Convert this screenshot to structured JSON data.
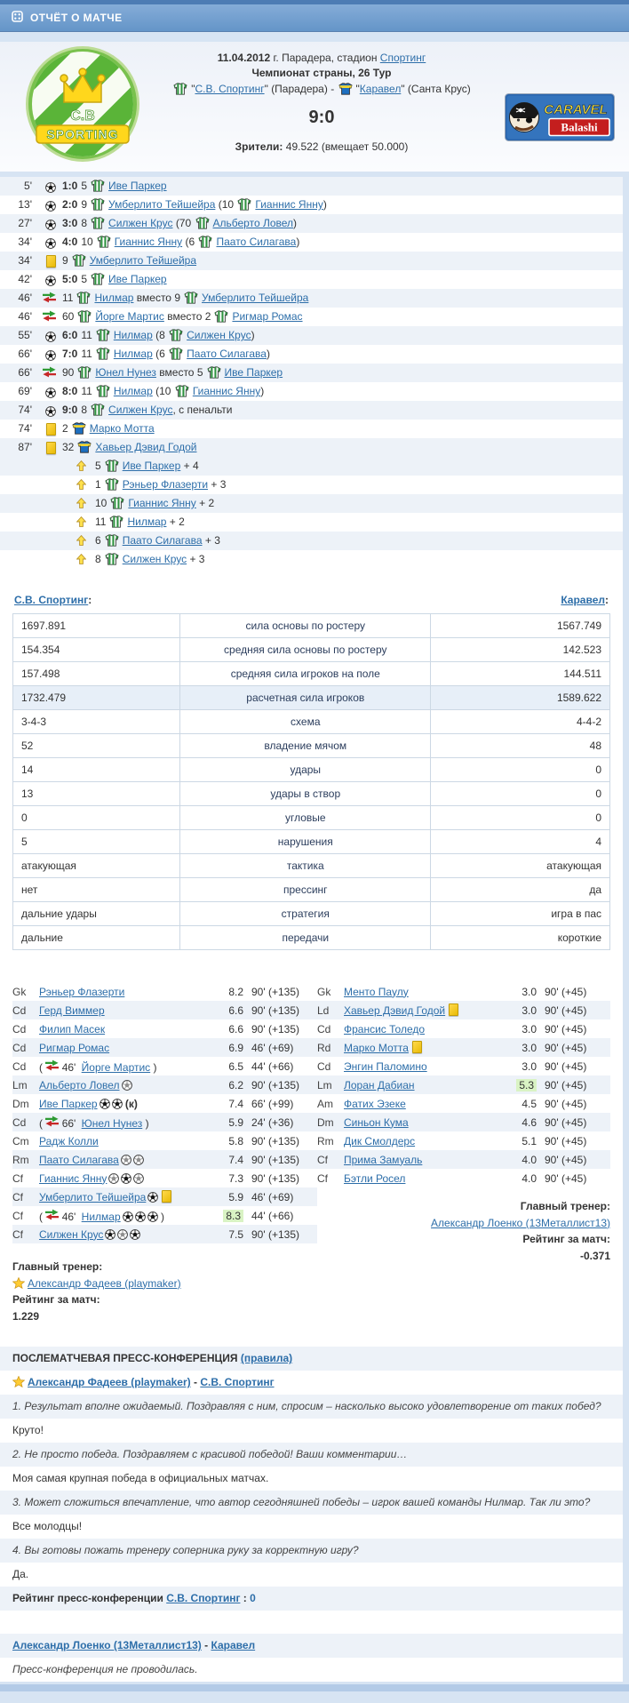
{
  "title_bar": {
    "title": "ОТЧЁТ О МАТЧЕ"
  },
  "match": {
    "date": "11.04.2012",
    "venue_rest": "г. Парадера, стадион",
    "stadium": "Спортинг",
    "competition": "Чемпионат страны, 26 Тур",
    "home_team": "С.В. Спортинг",
    "home_city": "(Парадера)",
    "separator": "-",
    "away_team": "Каравел",
    "away_city": "(Санта Крус)",
    "score": "9:0",
    "attendance_label": "Зрители:",
    "attendance_value": "49.522 (вмещает 50.000)"
  },
  "crest": {
    "initials": "C.B",
    "banner": "SPORTING"
  },
  "sponsor": {
    "name": "CARAVEL",
    "sub": "Balashi"
  },
  "sub_word": "вместо",
  "events": [
    {
      "time": "5'",
      "type": "goal",
      "score": "1:0",
      "num": "5",
      "player": "Иве Паркер"
    },
    {
      "time": "13'",
      "type": "goal",
      "score": "2:0",
      "num": "9",
      "player": "Умберлито Тейшейра",
      "assist_num": "10",
      "assist": "Гианнис Янну"
    },
    {
      "time": "27'",
      "type": "goal",
      "score": "3:0",
      "num": "8",
      "player": "Силжен Крус",
      "assist_num": "70",
      "assist": "Альберто Ловел"
    },
    {
      "time": "34'",
      "type": "goal",
      "score": "4:0",
      "num": "10",
      "player": "Гианнис Янну",
      "assist_num": "6",
      "assist": "Паато Силагава"
    },
    {
      "time": "34'",
      "type": "yellow",
      "num": "9",
      "player": "Умберлито Тейшейра",
      "team": "home"
    },
    {
      "time": "42'",
      "type": "goal",
      "score": "5:0",
      "num": "5",
      "player": "Иве Паркер"
    },
    {
      "time": "46'",
      "type": "sub",
      "num": "11",
      "player": "Нилмар",
      "out_num": "9",
      "out_player": "Умберлито Тейшейра"
    },
    {
      "time": "46'",
      "type": "sub",
      "num": "60",
      "player": "Йорге Мартис",
      "out_num": "2",
      "out_player": "Ригмар Ромас"
    },
    {
      "time": "55'",
      "type": "goal",
      "score": "6:0",
      "num": "11",
      "player": "Нилмар",
      "assist_num": "8",
      "assist": "Силжен Крус"
    },
    {
      "time": "66'",
      "type": "goal",
      "score": "7:0",
      "num": "11",
      "player": "Нилмар",
      "assist_num": "6",
      "assist": "Паато Силагава"
    },
    {
      "time": "66'",
      "type": "sub",
      "num": "90",
      "player": "Юнел Нунез",
      "out_num": "5",
      "out_player": "Иве Паркер"
    },
    {
      "time": "69'",
      "type": "goal",
      "score": "8:0",
      "num": "11",
      "player": "Нилмар",
      "assist_num": "10",
      "assist": "Гианнис Янну"
    },
    {
      "time": "74'",
      "type": "goal",
      "score": "9:0",
      "num": "8",
      "player": "Силжен Крус",
      "suffix": ", с пенальти"
    },
    {
      "time": "74'",
      "type": "yellow",
      "num": "2",
      "player": "Марко Мотта",
      "team": "away"
    },
    {
      "time": "87'",
      "type": "yellow",
      "num": "32",
      "player": "Хавьер Дэвид Годой",
      "team": "away"
    }
  ],
  "bonuses": [
    {
      "num": "5",
      "player": "Иве Паркер",
      "gain": "+ 4"
    },
    {
      "num": "1",
      "player": "Рэньер Флазерти",
      "gain": "+ 3"
    },
    {
      "num": "10",
      "player": "Гианнис Янну",
      "gain": "+ 2"
    },
    {
      "num": "11",
      "player": "Нилмар",
      "gain": "+ 2"
    },
    {
      "num": "6",
      "player": "Паато Силагава",
      "gain": "+ 3"
    },
    {
      "num": "8",
      "player": "Силжен Крус",
      "gain": "+ 3"
    }
  ],
  "stats": {
    "home_header": "С.В. Спортинг",
    "away_header": "Каравел",
    "rows": [
      {
        "home": "1697.891",
        "label": "сила основы по ростеру",
        "away": "1567.749"
      },
      {
        "home": "154.354",
        "label": "средняя сила основы по ростеру",
        "away": "142.523"
      },
      {
        "home": "157.498",
        "label": "средняя сила игроков на поле",
        "away": "144.511"
      },
      {
        "home": "1732.479",
        "label": "расчетная сила игроков",
        "away": "1589.622",
        "highlight": true
      },
      {
        "home": "3-4-3",
        "label": "схема",
        "away": "4-4-2"
      },
      {
        "home": "52",
        "label": "владение мячом",
        "away": "48"
      },
      {
        "home": "14",
        "label": "удары",
        "away": "0"
      },
      {
        "home": "13",
        "label": "удары в створ",
        "away": "0"
      },
      {
        "home": "0",
        "label": "угловые",
        "away": "0"
      },
      {
        "home": "5",
        "label": "нарушения",
        "away": "4"
      },
      {
        "home": "атакующая",
        "label": "тактика",
        "away": "атакующая"
      },
      {
        "home": "нет",
        "label": "прессинг",
        "away": "да"
      },
      {
        "home": "дальние удары",
        "label": "стратегия",
        "away": "игра в пас"
      },
      {
        "home": "дальние",
        "label": "передачи",
        "away": "короткие"
      }
    ]
  },
  "lineups": {
    "home": [
      {
        "pos": "Gk",
        "name": "Рэньер Флазерти",
        "rating": "8.2",
        "minutes": "90' (+135)"
      },
      {
        "pos": "Cd",
        "name": "Герд Виммер",
        "rating": "6.6",
        "minutes": "90' (+135)"
      },
      {
        "pos": "Cd",
        "name": "Филип Масек",
        "rating": "6.6",
        "minutes": "90' (+135)"
      },
      {
        "pos": "Cd",
        "name": "Ригмар Ромас",
        "rating": "6.9",
        "minutes": "46' (+69)"
      },
      {
        "pos": "Cd",
        "sub_in": "46'",
        "name": "Йорге Мартис",
        "rating": "6.5",
        "minutes": "44' (+66)"
      },
      {
        "pos": "Lm",
        "name": "Альберто Ловел",
        "balls": [
          "a"
        ],
        "rating": "6.2",
        "minutes": "90' (+135)"
      },
      {
        "pos": "Dm",
        "name": "Иве Паркер",
        "balls": [
          "g",
          "g"
        ],
        "captain": "(к)",
        "rating": "7.4",
        "minutes": "66' (+99)"
      },
      {
        "pos": "Cd",
        "sub_in": "66'",
        "name": "Юнел Нунез",
        "rating": "5.9",
        "minutes": "24' (+36)"
      },
      {
        "pos": "Cm",
        "name": "Радж Колли",
        "rating": "5.8",
        "minutes": "90' (+135)"
      },
      {
        "pos": "Rm",
        "name": "Паато Силагава",
        "balls": [
          "a",
          "a"
        ],
        "rating": "7.4",
        "minutes": "90' (+135)"
      },
      {
        "pos": "Cf",
        "name": "Гианнис Янну",
        "balls": [
          "a",
          "g",
          "a"
        ],
        "rating": "7.3",
        "minutes": "90' (+135)"
      },
      {
        "pos": "Cf",
        "name": "Умберлито Тейшейра",
        "balls": [
          "g"
        ],
        "yellow": true,
        "rating": "5.9",
        "minutes": "46' (+69)"
      },
      {
        "pos": "Cf",
        "sub_in": "46'",
        "name": "Нилмар",
        "balls": [
          "g",
          "g",
          "g"
        ],
        "rating": "8.3",
        "highlight": true,
        "minutes": "44' (+66)"
      },
      {
        "pos": "Cf",
        "name": "Силжен Крус",
        "balls": [
          "g",
          "a",
          "g"
        ],
        "rating": "7.5",
        "minutes": "90' (+135)"
      }
    ],
    "away": [
      {
        "pos": "Gk",
        "name": "Менто Паулу",
        "rating": "3.0",
        "minutes": "90' (+45)"
      },
      {
        "pos": "Ld",
        "name": "Хавьер Дэвид Годой",
        "yellow": true,
        "rating": "3.0",
        "minutes": "90' (+45)"
      },
      {
        "pos": "Cd",
        "name": "Франсис Толедо",
        "rating": "3.0",
        "minutes": "90' (+45)"
      },
      {
        "pos": "Rd",
        "name": "Марко Мотта",
        "yellow": true,
        "rating": "3.0",
        "minutes": "90' (+45)"
      },
      {
        "pos": "Cd",
        "name": "Энгин Паломино",
        "rating": "3.0",
        "minutes": "90' (+45)"
      },
      {
        "pos": "Lm",
        "name": "Лоран Дабиан",
        "rating": "5.3",
        "highlight": true,
        "minutes": "90' (+45)"
      },
      {
        "pos": "Am",
        "name": "Фатих Эзеке",
        "rating": "4.5",
        "minutes": "90' (+45)"
      },
      {
        "pos": "Dm",
        "name": "Синьон Кума",
        "rating": "4.6",
        "minutes": "90' (+45)"
      },
      {
        "pos": "Rm",
        "name": "Дик Смолдерс",
        "rating": "5.1",
        "minutes": "90' (+45)"
      },
      {
        "pos": "Cf",
        "name": "Прима Замуаль",
        "rating": "4.0",
        "minutes": "90' (+45)"
      },
      {
        "pos": "Cf",
        "name": "Бэтли Росел",
        "rating": "4.0",
        "minutes": "90' (+45)"
      }
    ]
  },
  "coaches": {
    "label": "Главный тренер:",
    "rating_label": "Рейтинг за матч:",
    "home_name": "Александр Фадеев (playmaker)",
    "home_rating": "1.229",
    "away_name": "Александр Лоенко (13Металлист13)",
    "away_rating": "-0.371"
  },
  "conference": {
    "title": "ПОСЛЕМАТЧЕВАЯ ПРЕСС-КОНФЕРЕНЦИЯ",
    "rules_link": "(правила)",
    "home": {
      "coach": "Александр Фадеев (playmaker)",
      "team": "С.В. Спортинг",
      "qa": [
        {
          "q": "1. Результат вполне ожидаемый. Поздравляя с ним, спросим – насколько высоко удовлетворение от таких побед?",
          "a": "Круто!"
        },
        {
          "q": "2. Не просто победа. Поздравляем с красивой победой! Ваши комментарии…",
          "a": "Моя самая крупная победа в официальных матчах."
        },
        {
          "q": "3. Может сложиться впечатление, что автор сегодняшней победы – игрок вашей команды Нилмар. Так ли это?",
          "a": "Все молодцы!"
        },
        {
          "q": "4. Вы готовы пожать тренеру соперника руку за корректную игру?",
          "a": "Да."
        }
      ],
      "rating_label": "Рейтинг пресс-конференции",
      "rating_value": "0"
    },
    "away": {
      "coach": "Александр Лоенко (13Металлист13)",
      "team": "Каравел",
      "note": "Пресс-конференция не проводилась."
    }
  },
  "colors": {
    "accent_blue": "#6f9fd0",
    "link": "#2d6ea9",
    "row_light": "#edf2f8",
    "rating_highlight_green": "#d9f3c4",
    "card_yellow": "#f3c912",
    "home_shirt_green": "#2f9240",
    "away_shirt_blue": "#1d6fc0"
  }
}
